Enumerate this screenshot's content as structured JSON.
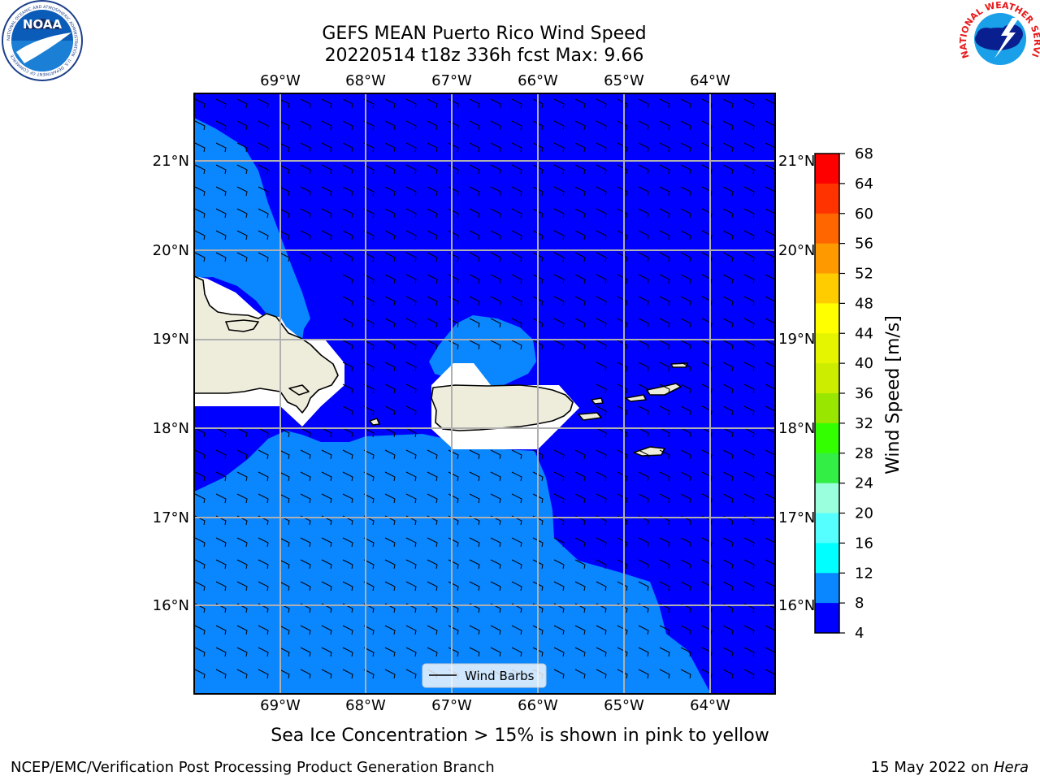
{
  "title": {
    "line1": "GEFS MEAN Puerto Rico Wind Speed",
    "line2": "20220514 t18z 336h fcst   Max: 9.66"
  },
  "logos": {
    "left": {
      "name": "noaa-logo",
      "text": "NOAA",
      "ring_text": "NATIONAL OCEANIC AND ATMOSPHERIC ADMINISTRATION · U.S. DEPARTMENT OF COMMERCE"
    },
    "right": {
      "name": "nws-logo",
      "ring_text": "NATIONAL WEATHER SERVICE"
    }
  },
  "map": {
    "lon_ticks": [
      "69°W",
      "68°W",
      "67°W",
      "66°W",
      "65°W",
      "64°W"
    ],
    "lat_ticks": [
      "21°N",
      "20°N",
      "19°N",
      "18°N",
      "17°N",
      "16°N"
    ],
    "legend_label": "Wind Barbs",
    "colors": {
      "4-8": "#0000ff",
      "8-12": "#0a86ff",
      "land": "#eeeddc",
      "masked": "#ffffff",
      "grid": "#b0b0b0",
      "barb": "#000000"
    }
  },
  "colorbar": {
    "label": "Wind Speed [m/s]",
    "ticks": [
      "68",
      "64",
      "60",
      "56",
      "52",
      "48",
      "44",
      "40",
      "36",
      "32",
      "28",
      "24",
      "20",
      "16",
      "12",
      "8",
      "4"
    ],
    "bands_top_to_bottom": [
      "#ff0000",
      "#ff3300",
      "#ff6600",
      "#ff9900",
      "#ffcc00",
      "#ffff00",
      "#e5f500",
      "#ccec00",
      "#99e600",
      "#33ff00",
      "#33ee44",
      "#99ffdd",
      "#55ffff",
      "#00ffff",
      "#0a86ff",
      "#0000ff"
    ]
  },
  "footer": {
    "note": "Sea Ice Concentration > 15% is shown in pink to yellow",
    "branch": "NCEP/EMC/Verification Post Processing Product Generation Branch",
    "date": "15 May 2022 on ",
    "machine": "Hera"
  }
}
